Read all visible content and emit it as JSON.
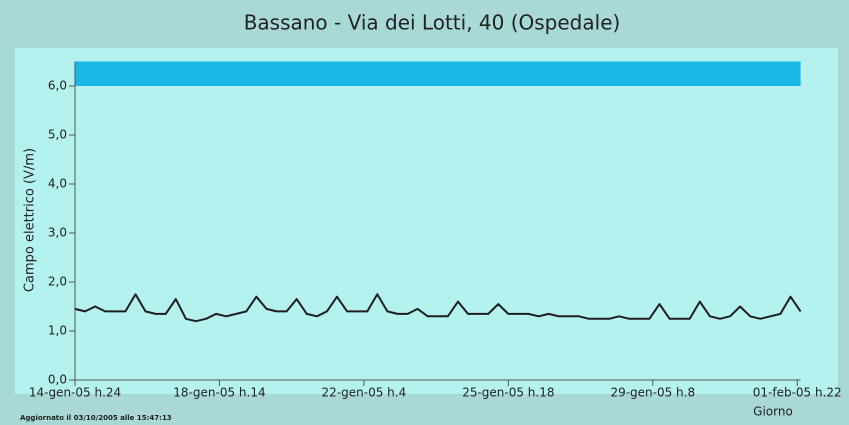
{
  "chart_data": {
    "type": "line",
    "title": "Bassano - Via dei Lotti, 40 (Ospedale)",
    "y_label": "Campo elettrico (V/m)",
    "x_label": "Giorno",
    "footnote": "Aggiornato il 03/10/2005 alle 15:47:13",
    "xlim": [
      0,
      432
    ],
    "xticks": [
      {
        "value": 0,
        "label": "14-gen-05 h.24"
      },
      {
        "value": 86,
        "label": "18-gen-05 h.14"
      },
      {
        "value": 172,
        "label": "22-gen-05 h.4"
      },
      {
        "value": 258,
        "label": "25-gen-05 h.18"
      },
      {
        "value": 344,
        "label": "29-gen-05 h.8"
      },
      {
        "value": 430,
        "label": "01-feb-05 h.22"
      }
    ],
    "ylim": [
      0,
      6.5
    ],
    "yticks": [
      {
        "value": 0,
        "label": "0,0"
      },
      {
        "value": 1,
        "label": "1,0"
      },
      {
        "value": 2,
        "label": "2,0"
      },
      {
        "value": 3,
        "label": "3,0"
      },
      {
        "value": 4,
        "label": "4,0"
      },
      {
        "value": 5,
        "label": "5,0"
      },
      {
        "value": 6,
        "label": "6,0"
      }
    ],
    "band": {
      "from": 6,
      "to": 6.5,
      "color": "#1ab6e6"
    },
    "series": [
      {
        "color": "#1e1e1e",
        "x": [
          0,
          6,
          12,
          18,
          24,
          30,
          36,
          42,
          48,
          54,
          60,
          66,
          72,
          78,
          84,
          90,
          96,
          102,
          108,
          114,
          120,
          126,
          132,
          138,
          144,
          150,
          156,
          162,
          168,
          174,
          180,
          186,
          192,
          198,
          204,
          210,
          216,
          222,
          228,
          234,
          240,
          246,
          252,
          258,
          264,
          270,
          276,
          282,
          288,
          294,
          300,
          306,
          312,
          318,
          324,
          330,
          336,
          342,
          348,
          354,
          360,
          366,
          372,
          378,
          384,
          390,
          396,
          402,
          408,
          414,
          420,
          426,
          432
        ],
        "values": [
          1.45,
          1.4,
          1.5,
          1.4,
          1.4,
          1.4,
          1.75,
          1.4,
          1.35,
          1.35,
          1.65,
          1.25,
          1.2,
          1.25,
          1.35,
          1.3,
          1.35,
          1.4,
          1.7,
          1.45,
          1.4,
          1.4,
          1.65,
          1.35,
          1.3,
          1.4,
          1.7,
          1.4,
          1.4,
          1.4,
          1.75,
          1.4,
          1.35,
          1.35,
          1.45,
          1.3,
          1.3,
          1.3,
          1.6,
          1.35,
          1.35,
          1.35,
          1.55,
          1.35,
          1.35,
          1.35,
          1.3,
          1.35,
          1.3,
          1.3,
          1.3,
          1.25,
          1.25,
          1.25,
          1.3,
          1.25,
          1.25,
          1.25,
          1.55,
          1.25,
          1.25,
          1.25,
          1.6,
          1.3,
          1.25,
          1.3,
          1.5,
          1.3,
          1.25,
          1.3,
          1.35,
          1.7,
          1.4
        ]
      }
    ]
  }
}
